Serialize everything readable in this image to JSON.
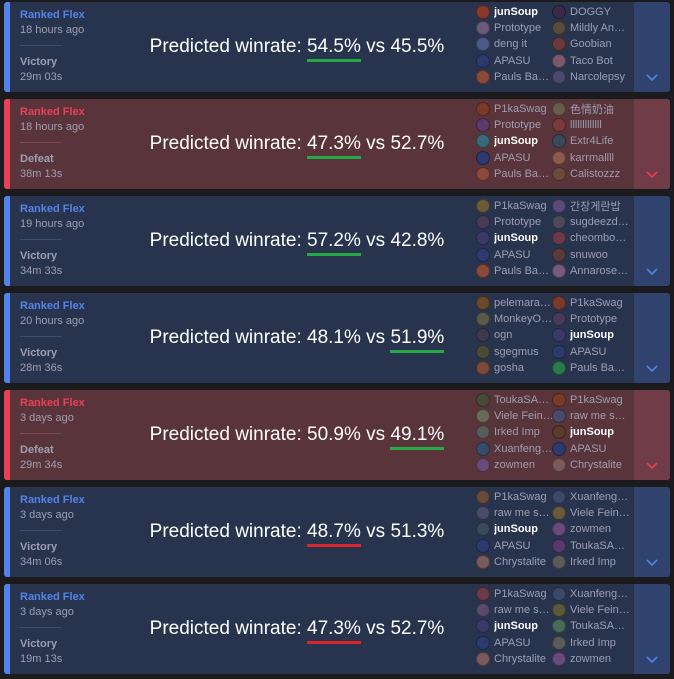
{
  "colors": {
    "win_bg": "#28344e",
    "loss_bg": "#59343a",
    "win_accent": "#5383e8",
    "loss_accent": "#e84057",
    "underline_green": "#28a745",
    "underline_red": "#d9262c"
  },
  "matches": [
    {
      "queue": "Ranked Flex",
      "ago": "18 hours ago",
      "result": "Victory",
      "duration": "29m 03s",
      "wr_prefix": "Predicted winrate: ",
      "wr_a": "54.5%",
      "wr_vs": " vs ",
      "wr_b": "45.5%",
      "underline": "a",
      "underline_color": "green",
      "team1": [
        {
          "name": "junSoup",
          "champ_color": "#8a3a2c"
        },
        {
          "name": "Prototype",
          "champ_color": "#6b5a7a"
        },
        {
          "name": "deng it",
          "champ_color": "#4a5a8a"
        },
        {
          "name": "APASU",
          "champ_color": "#2c3a6e"
        },
        {
          "name": "Pauls Ba…",
          "champ_color": "#8a4a3a"
        }
      ],
      "team2": [
        {
          "name": "DOGGY",
          "champ_color": "#3a2a4a"
        },
        {
          "name": "Mildly An…",
          "champ_color": "#5a4a3a"
        },
        {
          "name": "Goobian",
          "champ_color": "#6a3a3a"
        },
        {
          "name": "Taco Bot",
          "champ_color": "#7a5a6a"
        },
        {
          "name": "Narcolepsy",
          "champ_color": "#4a4a6a"
        }
      ]
    },
    {
      "queue": "Ranked Flex",
      "ago": "18 hours ago",
      "result": "Defeat",
      "duration": "38m 13s",
      "wr_prefix": "Predicted winrate: ",
      "wr_a": "47.3%",
      "wr_vs": " vs ",
      "wr_b": "52.7%",
      "underline": "a",
      "underline_color": "green",
      "team1": [
        {
          "name": "P1kaSwag",
          "champ_color": "#7a3a2a"
        },
        {
          "name": "Prototype",
          "champ_color": "#5a3a6a"
        },
        {
          "name": "junSoup",
          "champ_color": "#3a6a7a"
        },
        {
          "name": "APASU",
          "champ_color": "#2c3a6e"
        },
        {
          "name": "Pauls Ba…",
          "champ_color": "#8a4a3a"
        }
      ],
      "team2": [
        {
          "name": "色情奶油",
          "champ_color": "#6a5a4a"
        },
        {
          "name": "lllllllllllll",
          "champ_color": "#7a3a3a"
        },
        {
          "name": "Extr4Life",
          "champ_color": "#3a4a5a"
        },
        {
          "name": "karrmallll",
          "champ_color": "#8a5a4a"
        },
        {
          "name": "Calistozzz",
          "champ_color": "#6a4a3a"
        }
      ]
    },
    {
      "queue": "Ranked Flex",
      "ago": "19 hours ago",
      "result": "Victory",
      "duration": "34m 33s",
      "wr_prefix": "Predicted winrate: ",
      "wr_a": "57.2%",
      "wr_vs": " vs ",
      "wr_b": "42.8%",
      "underline": "a",
      "underline_color": "green",
      "team1": [
        {
          "name": "P1kaSwag",
          "champ_color": "#6a5a3a"
        },
        {
          "name": "Prototype",
          "champ_color": "#4a3a5a"
        },
        {
          "name": "junSoup",
          "champ_color": "#3a3a6a"
        },
        {
          "name": "APASU",
          "champ_color": "#2c3a6e"
        },
        {
          "name": "Pauls Ba…",
          "champ_color": "#8a4a3a"
        }
      ],
      "team2": [
        {
          "name": "간장게란밥",
          "champ_color": "#5a4a7a"
        },
        {
          "name": "sugdeezd…",
          "champ_color": "#4a4a5a"
        },
        {
          "name": "cheombo…",
          "champ_color": "#6a3a4a"
        },
        {
          "name": "snuwoo",
          "champ_color": "#5a3a3a"
        },
        {
          "name": "Annarose…",
          "champ_color": "#7a5a7a"
        }
      ]
    },
    {
      "queue": "Ranked Flex",
      "ago": "20 hours ago",
      "result": "Victory",
      "duration": "28m 36s",
      "wr_prefix": "Predicted winrate: ",
      "wr_a": "48.1%",
      "wr_vs": " vs ",
      "wr_b": "51.9%",
      "underline": "b",
      "underline_color": "green",
      "team1": [
        {
          "name": "pelemara…",
          "champ_color": "#6a4a2a"
        },
        {
          "name": "MonkeyO…",
          "champ_color": "#5a5a4a"
        },
        {
          "name": "ogn",
          "champ_color": "#3a3a4a"
        },
        {
          "name": "sgegmus",
          "champ_color": "#4a4a3a"
        },
        {
          "name": "gosha",
          "champ_color": "#7a4a3a"
        }
      ],
      "team2": [
        {
          "name": "P1kaSwag",
          "champ_color": "#7a3a2a"
        },
        {
          "name": "Prototype",
          "champ_color": "#4a3a5a"
        },
        {
          "name": "junSoup",
          "champ_color": "#3a3a6a"
        },
        {
          "name": "APASU",
          "champ_color": "#2c3a6e"
        },
        {
          "name": "Pauls Ba…",
          "champ_color": "#2a7a4a"
        }
      ]
    },
    {
      "queue": "Ranked Flex",
      "ago": "3 days ago",
      "result": "Defeat",
      "duration": "29m 34s",
      "wr_prefix": "Predicted winrate: ",
      "wr_a": "50.9%",
      "wr_vs": " vs ",
      "wr_b": "49.1%",
      "underline": "b",
      "underline_color": "green",
      "team1": [
        {
          "name": "ToukaSA…",
          "champ_color": "#4a4a3a"
        },
        {
          "name": "Viele Fein…",
          "champ_color": "#6a6a5a"
        },
        {
          "name": "Irked Imp",
          "champ_color": "#5a5a5a"
        },
        {
          "name": "Xuanfeng…",
          "champ_color": "#3a4a6a"
        },
        {
          "name": "zowmen",
          "champ_color": "#6a4a7a"
        }
      ],
      "team2": [
        {
          "name": "P1kaSwag",
          "champ_color": "#7a3a2a"
        },
        {
          "name": "raw me s…",
          "champ_color": "#4a4a6a"
        },
        {
          "name": "junSoup",
          "champ_color": "#5a3a2a"
        },
        {
          "name": "APASU",
          "champ_color": "#2c3a6e"
        },
        {
          "name": "Chrystalite",
          "champ_color": "#7a5a5a"
        }
      ]
    },
    {
      "queue": "Ranked Flex",
      "ago": "3 days ago",
      "result": "Victory",
      "duration": "34m 06s",
      "wr_prefix": "Predicted winrate: ",
      "wr_a": "48.7%",
      "wr_vs": " vs ",
      "wr_b": "51.3%",
      "underline": "a",
      "underline_color": "red",
      "team1": [
        {
          "name": "P1kaSwag",
          "champ_color": "#6a4a3a"
        },
        {
          "name": "raw me s…",
          "champ_color": "#4a4a6a"
        },
        {
          "name": "junSoup",
          "champ_color": "#3a4a5a"
        },
        {
          "name": "APASU",
          "champ_color": "#2c3a6e"
        },
        {
          "name": "Chrystalite",
          "champ_color": "#7a5a5a"
        }
      ],
      "team2": [
        {
          "name": "Xuanfeng…",
          "champ_color": "#3a4a6a"
        },
        {
          "name": "Viele Fein…",
          "champ_color": "#6a5a3a"
        },
        {
          "name": "zowmen",
          "champ_color": "#6a4a7a"
        },
        {
          "name": "ToukaSA…",
          "champ_color": "#5a3a6a"
        },
        {
          "name": "Irked Imp",
          "champ_color": "#5a5a5a"
        }
      ]
    },
    {
      "queue": "Ranked Flex",
      "ago": "3 days ago",
      "result": "Victory",
      "duration": "19m 13s",
      "wr_prefix": "Predicted winrate: ",
      "wr_a": "47.3%",
      "wr_vs": " vs ",
      "wr_b": "52.7%",
      "underline": "a",
      "underline_color": "red",
      "team1": [
        {
          "name": "P1kaSwag",
          "champ_color": "#6a3a4a"
        },
        {
          "name": "raw me s…",
          "champ_color": "#5a4a6a"
        },
        {
          "name": "junSoup",
          "champ_color": "#3a3a6a"
        },
        {
          "name": "APASU",
          "champ_color": "#2c3a6e"
        },
        {
          "name": "Chrystalite",
          "champ_color": "#7a5a5a"
        }
      ],
      "team2": [
        {
          "name": "Xuanfeng…",
          "champ_color": "#3a4a6a"
        },
        {
          "name": "Viele Fein…",
          "champ_color": "#5a5a3a"
        },
        {
          "name": "ToukaSA…",
          "champ_color": "#4a6a5a"
        },
        {
          "name": "Irked Imp",
          "champ_color": "#5a5a5a"
        },
        {
          "name": "zowmen",
          "champ_color": "#6a4a7a"
        }
      ]
    }
  ],
  "highlight_player": "junSoup",
  "expand_icon": "chevron-down-icon"
}
